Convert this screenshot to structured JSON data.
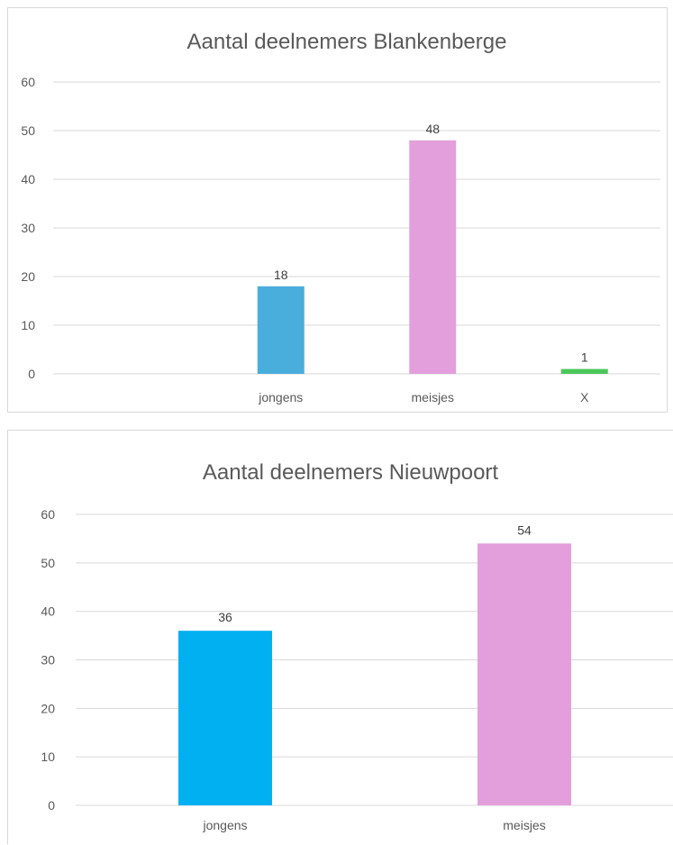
{
  "chart_data": [
    {
      "type": "bar",
      "title": "Aantal deelnemers Blankenberge",
      "categories": [
        "",
        "jongens",
        "meisjes",
        "X"
      ],
      "values": [
        null,
        18,
        48,
        1
      ],
      "colors": [
        "#4472c4",
        "#4aaedc",
        "#e29fdb",
        "#4cc85a"
      ],
      "ylim": [
        0,
        60
      ],
      "yticks": [
        0,
        10,
        20,
        30,
        40,
        50,
        60
      ],
      "grid": true,
      "legend": "none"
    },
    {
      "type": "bar",
      "title": "Aantal deelnemers Nieuwpoort",
      "categories": [
        "jongens",
        "meisjes"
      ],
      "values": [
        36,
        54
      ],
      "colors": [
        "#00b0f0",
        "#e29fdb"
      ],
      "ylim": [
        0,
        60
      ],
      "yticks": [
        0,
        10,
        20,
        30,
        40,
        50,
        60
      ],
      "grid": true,
      "legend": "none"
    }
  ]
}
